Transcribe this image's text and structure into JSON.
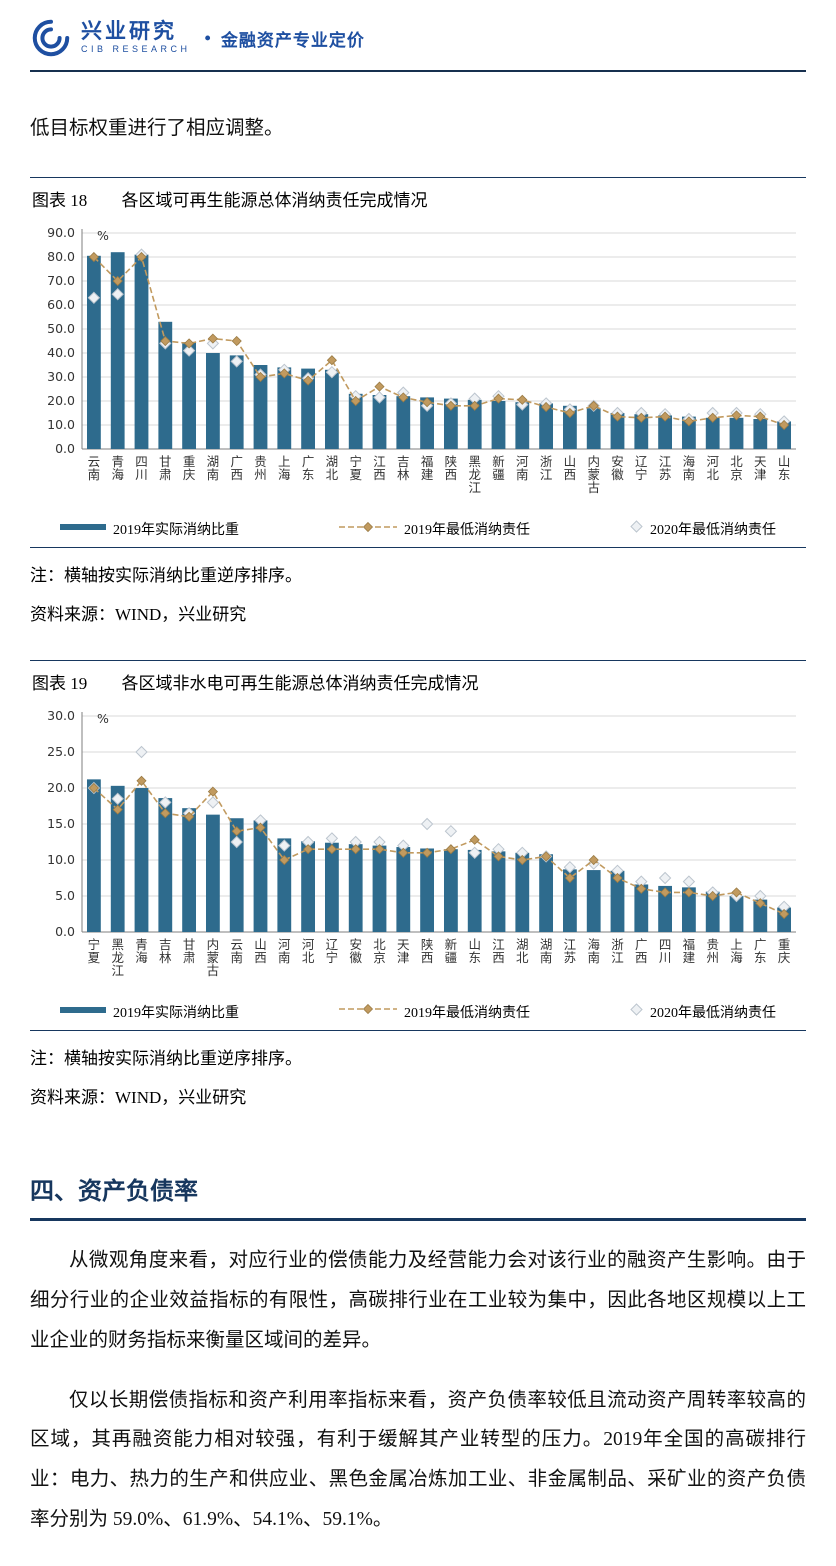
{
  "header": {
    "brand_cn": "兴业研究",
    "brand_en": "CIB RESEARCH",
    "separator": "•",
    "tagline": "金融资产专业定价",
    "brand_color": "#1e4fa1"
  },
  "intro_text": "低目标权重进行了相应调整。",
  "figure18": {
    "title_label": "图表 18",
    "title_text": "各区域可再生能源总体消纳责任完成情况",
    "note": "注：横轴按实际消纳比重逆序排序。",
    "source": "资料来源：WIND，兴业研究"
  },
  "figure19": {
    "title_label": "图表 19",
    "title_text": "各区域非水电可再生能源总体消纳责任完成情况",
    "note": "注：横轴按实际消纳比重逆序排序。",
    "source": "资料来源：WIND，兴业研究"
  },
  "section": {
    "heading": "四、资产负债率",
    "para1": "从微观角度来看，对应行业的偿债能力及经营能力会对该行业的融资产生影响。由于细分行业的企业效益指标的有限性，高碳排行业在工业较为集中，因此各地区规模以上工业企业的财务指标来衡量区域间的差异。",
    "para2": "仅以长期偿债指标和资产利用率指标来看，资产负债率较低且流动资产周转率较高的区域，其再融资能力相对较强，有利于缓解其产业转型的压力。2019年全国的高碳排行业：电力、热力的生产和供应业、黑色金属冶炼加工业、非金属制品、采矿业的资产负债率分别为 59.0%、61.9%、54.1%、59.1%。"
  },
  "chart_data": [
    {
      "type": "bar",
      "title": "各区域可再生能源总体消纳责任完成情况",
      "unit": "%",
      "ylim": [
        0,
        90
      ],
      "ytick_step": 10,
      "grid": true,
      "legend_position": "bottom",
      "categories": [
        "云南",
        "青海",
        "四川",
        "甘肃",
        "重庆",
        "湖南",
        "广西",
        "贵州",
        "上海",
        "广东",
        "湖北",
        "宁夏",
        "江西",
        "吉林",
        "福建",
        "陕西",
        "黑龙江",
        "新疆",
        "河南",
        "浙江",
        "山西",
        "内蒙古",
        "安徽",
        "辽宁",
        "江苏",
        "海南",
        "河北",
        "北京",
        "天津",
        "山东"
      ],
      "series": [
        {
          "name": "2019年实际消纳比重",
          "type": "bar",
          "color": "#2e6b8d",
          "values": [
            80.5,
            82,
            81,
            53,
            44.5,
            40,
            39,
            35,
            34,
            33.5,
            33,
            23,
            22.5,
            22,
            21.5,
            21,
            20.5,
            20,
            19.5,
            19,
            18,
            17,
            15,
            14.5,
            14,
            13.5,
            13,
            13,
            12.5,
            11.5
          ]
        },
        {
          "name": "2019年最低消纳责任",
          "type": "line",
          "color": "#c19a5f",
          "stroke": "#9a7b45",
          "values": [
            80,
            70,
            80,
            45,
            44,
            46,
            45,
            30,
            31.5,
            28.5,
            37,
            20,
            26,
            21.5,
            19.5,
            18,
            18,
            21,
            20.5,
            17.5,
            15,
            18,
            13.5,
            13,
            13.5,
            11.5,
            13,
            14,
            13.5,
            10
          ]
        },
        {
          "name": "2020年最低消纳责任",
          "type": "diamond",
          "color": "#eef1f4",
          "stroke": "#bcc5ce",
          "values": [
            63,
            64.5,
            81,
            44,
            41,
            44,
            36.5,
            31,
            33,
            29.5,
            32,
            22,
            21.5,
            23.5,
            18,
            19,
            21,
            22,
            18.5,
            19,
            16.5,
            18,
            15,
            15,
            14.5,
            12.5,
            15,
            15,
            14.5,
            11.5
          ]
        }
      ]
    },
    {
      "type": "bar",
      "title": "各区域非水电可再生能源总体消纳责任完成情况",
      "unit": "%",
      "ylim": [
        0,
        30
      ],
      "ytick_step": 5,
      "grid": true,
      "legend_position": "bottom",
      "categories": [
        "宁夏",
        "黑龙江",
        "青海",
        "吉林",
        "甘肃",
        "内蒙古",
        "云南",
        "山西",
        "河南",
        "河北",
        "辽宁",
        "安徽",
        "北京",
        "天津",
        "陕西",
        "新疆",
        "山东",
        "江西",
        "湖北",
        "湖南",
        "江苏",
        "海南",
        "浙江",
        "广西",
        "四川",
        "福建",
        "贵州",
        "上海",
        "广东",
        "重庆"
      ],
      "series": [
        {
          "name": "2019年实际消纳比重",
          "type": "bar",
          "color": "#2e6b8d",
          "values": [
            21.2,
            20.3,
            20,
            18.6,
            17.2,
            16.3,
            15.8,
            15.5,
            13,
            12.6,
            12.4,
            12.2,
            12,
            11.8,
            11.6,
            11.5,
            11.4,
            11.2,
            11,
            10.8,
            8.7,
            8.6,
            8.5,
            6.6,
            6.4,
            6.2,
            5.6,
            5,
            4.5,
            3.4
          ]
        },
        {
          "name": "2019年最低消纳责任",
          "type": "line",
          "color": "#c19a5f",
          "stroke": "#9a7b45",
          "values": [
            20,
            17,
            21,
            16.5,
            16,
            19.5,
            14,
            14.5,
            10,
            11.5,
            11.5,
            11.5,
            11.5,
            11,
            11,
            11.5,
            12.8,
            10.5,
            10,
            10.5,
            7.5,
            10,
            7.5,
            6,
            5.5,
            5.5,
            5,
            5.5,
            4,
            2.5
          ]
        },
        {
          "name": "2020年最低消纳责任",
          "type": "diamond",
          "color": "#eef1f4",
          "stroke": "#bcc5ce",
          "values": [
            20,
            18.5,
            25,
            18,
            16.5,
            18,
            12.5,
            15.5,
            12,
            12.5,
            13,
            12.5,
            12.5,
            12,
            15,
            14,
            11,
            11.5,
            11,
            10.5,
            9,
            9.5,
            8.5,
            7,
            7.5,
            7,
            5.5,
            5,
            5,
            3.5
          ]
        }
      ]
    }
  ]
}
